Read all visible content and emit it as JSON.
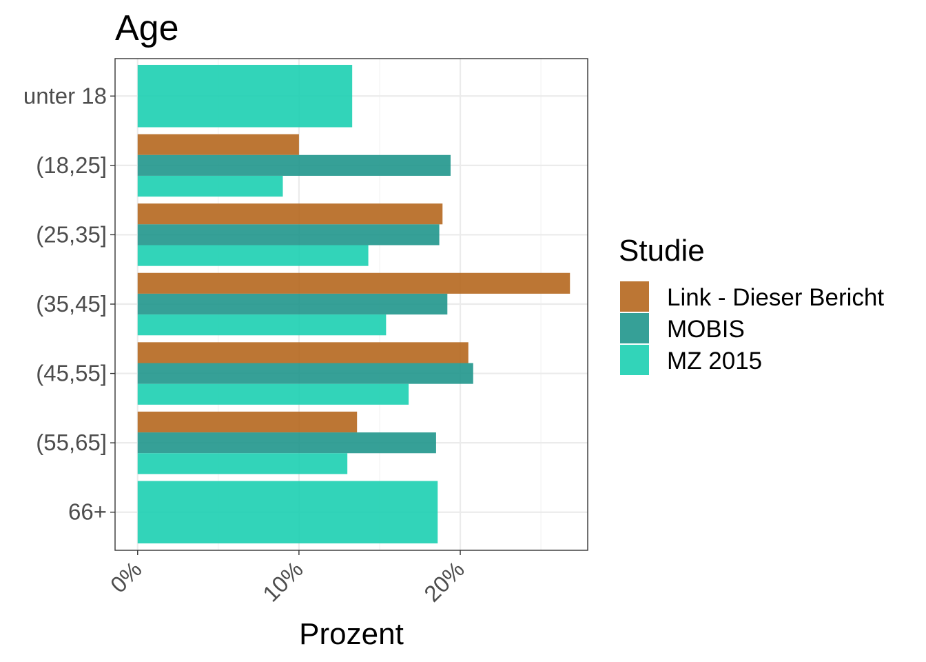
{
  "chart_data": {
    "type": "bar",
    "orientation": "horizontal",
    "title": "Age",
    "xlabel": "Prozent",
    "ylabel": "",
    "categories": [
      "unter 18",
      "(18,25]",
      "(25,35]",
      "(35,45]",
      "(45,55]",
      "(55,65]",
      "66+"
    ],
    "x_ticks": [
      0,
      10,
      20
    ],
    "x_tick_labels": [
      "0%",
      "10%",
      "20%"
    ],
    "xlim": [
      -1.4,
      27.9
    ],
    "grid": true,
    "legend_title": "Studie",
    "legend_position": "right",
    "series": [
      {
        "name": "Link - Dieser Bericht",
        "color": "#b5671e",
        "values": [
          null,
          10.0,
          18.9,
          26.8,
          20.5,
          13.6,
          null
        ]
      },
      {
        "name": "MOBIS",
        "color": "#20968c",
        "values": [
          null,
          19.4,
          18.7,
          19.2,
          20.8,
          18.5,
          null
        ]
      },
      {
        "name": "MZ 2015",
        "color": "#1ccfb1",
        "values": [
          13.3,
          9.0,
          14.3,
          15.4,
          16.8,
          13.0,
          18.6
        ]
      }
    ]
  }
}
